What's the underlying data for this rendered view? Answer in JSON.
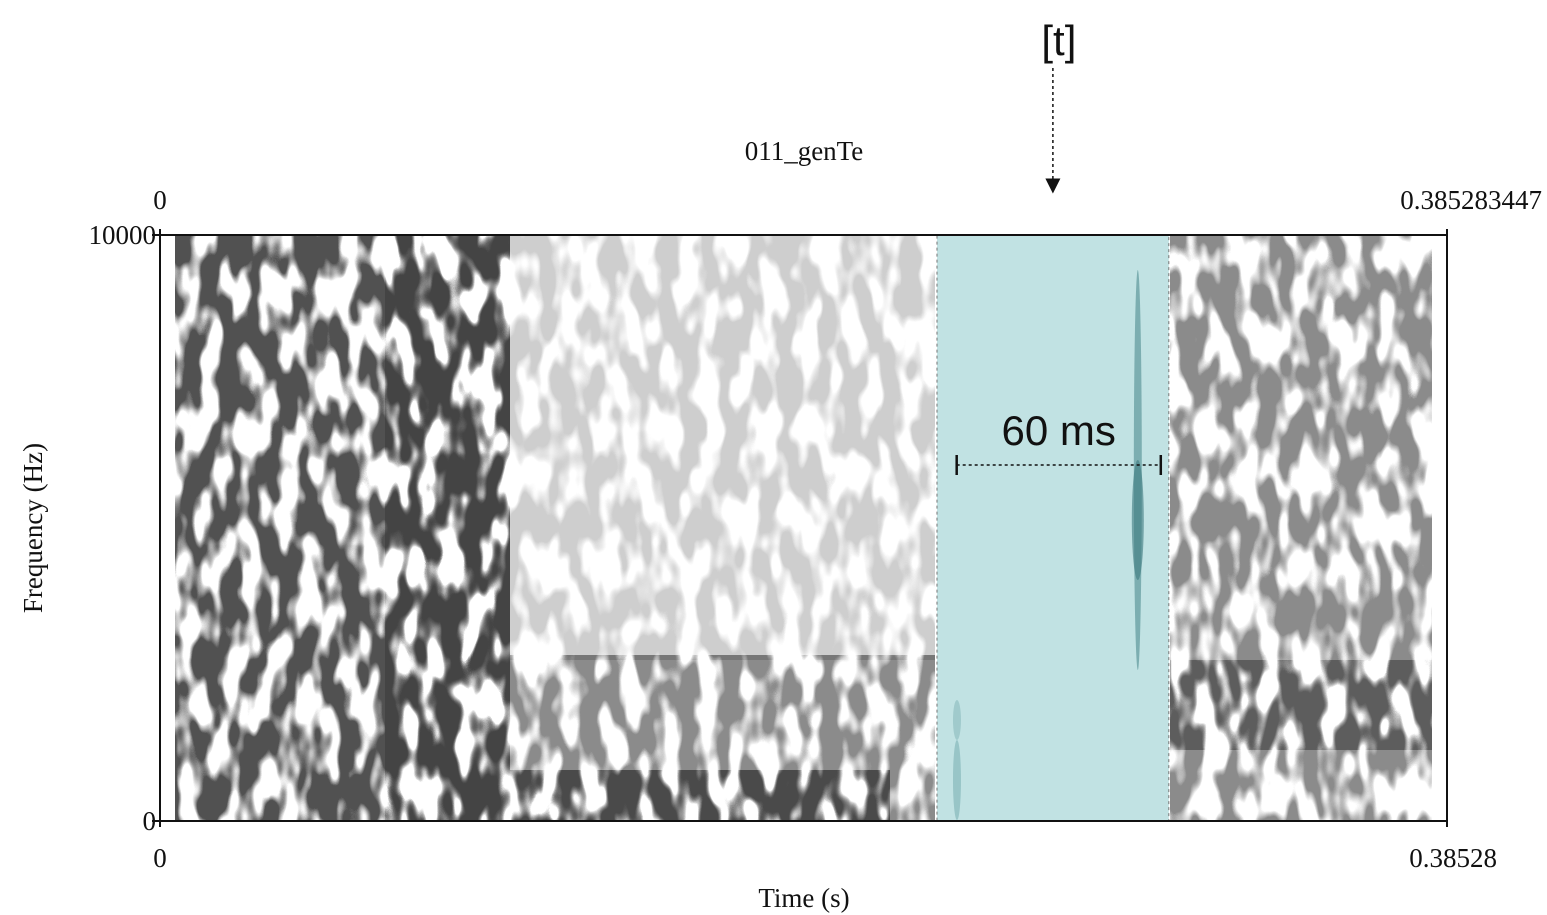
{
  "chart_data": {
    "type": "spectrogram",
    "title": "011_genTe",
    "xlabel": "Time (s)",
    "ylabel": "Frequency (Hz)",
    "xlim": [
      0,
      0.38528
    ],
    "xticks": [
      0,
      0.38528
    ],
    "x2lim": [
      0,
      0.385283447
    ],
    "x2ticks": [
      0,
      0.385283447
    ],
    "ylim": [
      0,
      10000
    ],
    "yticks": [
      0,
      10000
    ],
    "highlight": {
      "range": [
        0.2326,
        0.302
      ],
      "color": "#c1e2e3"
    },
    "measure": {
      "range": [
        0.2385,
        0.2996
      ],
      "label": "60 ms"
    },
    "segment_label": "[t]"
  }
}
